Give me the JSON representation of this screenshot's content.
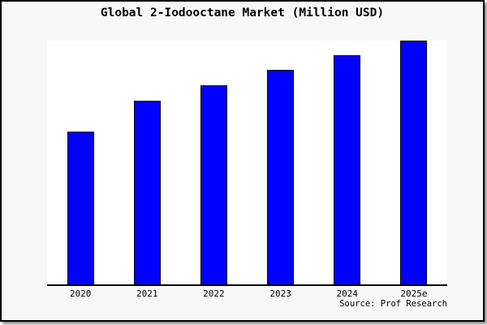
{
  "figure": {
    "title": "Global 2-Iodooctane Market (Million USD)",
    "source_note": "Source: Prof Research"
  },
  "chart_data": {
    "type": "bar",
    "title": "Global 2-Iodooctane Market (Million USD)",
    "categories": [
      "2020",
      "2021",
      "2022",
      "2023",
      "2024",
      "2025e"
    ],
    "values": [
      62.7,
      75.3,
      81.6,
      88.0,
      94.0,
      100.0
    ],
    "values_note": "No y-axis scale or data labels are rendered in the image; values are bar heights expressed as percent of the tallest (2025e) bar, estimated from pixels.",
    "xlabel": "",
    "ylabel": "",
    "ylim": [
      0,
      100.3
    ],
    "x_tick_labels": [
      "2020",
      "2021",
      "2022",
      "2023",
      "2024",
      "2025e"
    ],
    "y_tick_labels": [],
    "gridlines": false,
    "legend_position": "none",
    "bar_fill_color": "#0000ff",
    "bar_edge_color": "#000000",
    "annotation": "Source: Prof Research"
  },
  "colors": {
    "figure_background": "#f8f8f8",
    "plot_background": "#ffffff",
    "bar_fill": "#0000ff",
    "frame_border": "#000000",
    "axis_line": "#000000",
    "text": "#000000"
  }
}
